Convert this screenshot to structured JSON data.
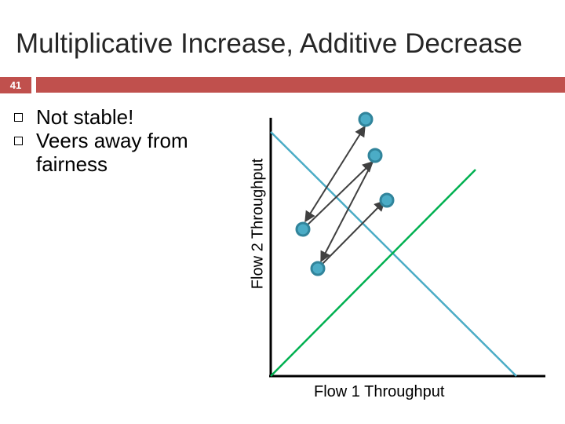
{
  "slide": {
    "title": "Multiplicative Increase, Additive Decrease",
    "number": "41",
    "accent_color": "#c0504d"
  },
  "bullets": [
    {
      "text": "Not stable!",
      "icon": "square-bullet-icon"
    },
    {
      "text": "Veers away from fairness",
      "icon": "square-bullet-icon"
    }
  ],
  "diagram": {
    "x_axis_label": "Flow 1 Throughput",
    "y_axis_label": "Flow 2 Throughput",
    "efficiency_line_color": "#4bacc6",
    "fairness_line_color": "#00b050",
    "point_fill_color": "#4bacc6",
    "point_stroke_color": "#31849b",
    "arrow_color": "#404040"
  }
}
